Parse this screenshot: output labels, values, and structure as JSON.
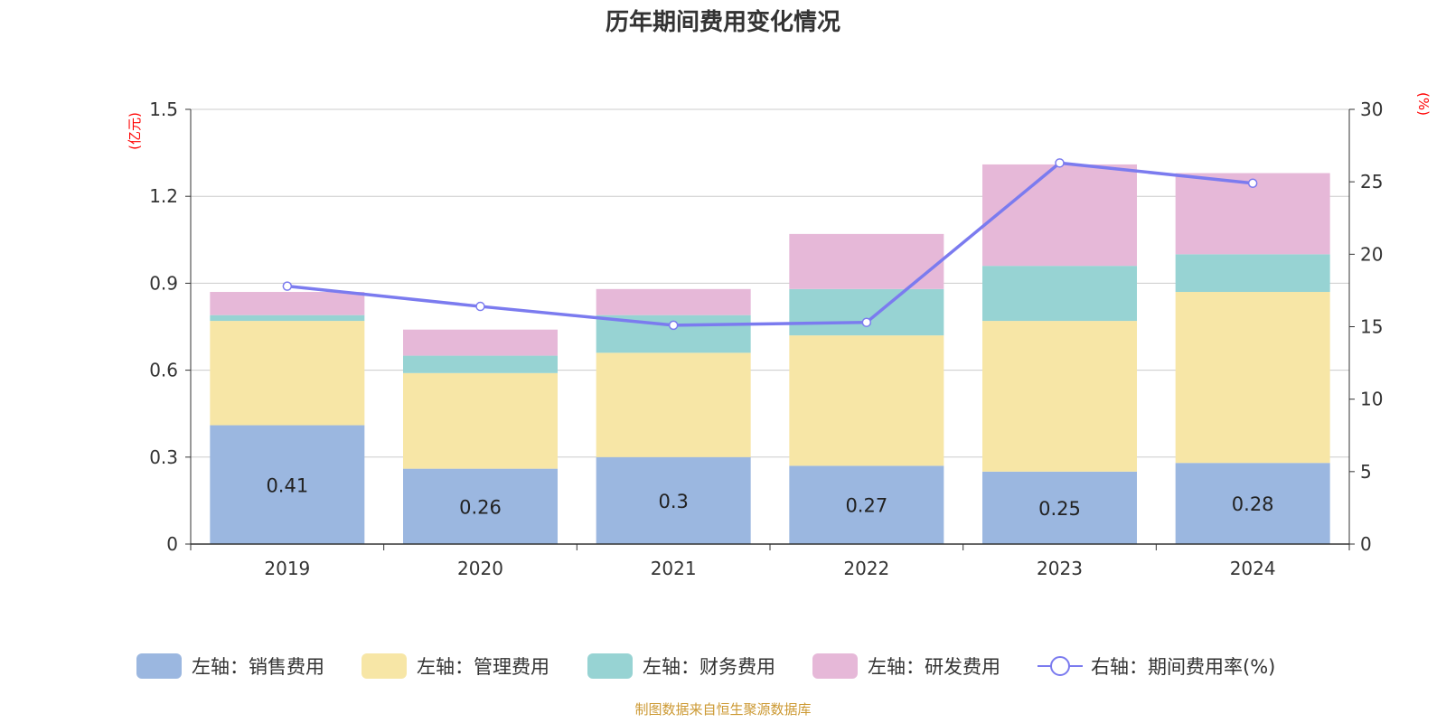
{
  "chart_data": {
    "type": "bar",
    "stacked": true,
    "title": "历年期间费用变化情况",
    "categories": [
      "2019",
      "2020",
      "2021",
      "2022",
      "2023",
      "2024"
    ],
    "left_axis": {
      "unit": "(亿元)",
      "ylim": [
        0,
        1.5
      ],
      "ticks": [
        "0",
        "0.3",
        "0.6",
        "0.9",
        "1.2",
        "1.5"
      ]
    },
    "right_axis": {
      "unit": "(%)",
      "ylim": [
        0,
        30
      ],
      "ticks": [
        "0",
        "5",
        "10",
        "15",
        "20",
        "25",
        "30"
      ]
    },
    "series": [
      {
        "name": "左轴：销售费用",
        "axis": "left",
        "color": "#9bb7e0",
        "values": [
          0.41,
          0.26,
          0.3,
          0.27,
          0.25,
          0.28
        ],
        "labels": [
          "0.41",
          "0.26",
          "0.3",
          "0.27",
          "0.25",
          "0.28"
        ]
      },
      {
        "name": "左轴：管理费用",
        "axis": "left",
        "color": "#f7e6a6",
        "values": [
          0.36,
          0.33,
          0.36,
          0.45,
          0.52,
          0.59
        ]
      },
      {
        "name": "左轴：财务费用",
        "axis": "left",
        "color": "#97d3d3",
        "values": [
          0.02,
          0.06,
          0.13,
          0.16,
          0.19,
          0.13
        ]
      },
      {
        "name": "左轴：研发费用",
        "axis": "left",
        "color": "#e6b8d8",
        "values": [
          0.08,
          0.09,
          0.09,
          0.19,
          0.35,
          0.28
        ]
      },
      {
        "name": "右轴：期间费用率(%)",
        "axis": "right",
        "type": "line",
        "color": "#7b7bef",
        "values": [
          17.8,
          16.4,
          15.1,
          15.3,
          26.3,
          24.9
        ]
      }
    ],
    "grid": true,
    "legend_position": "bottom"
  },
  "footer": "制图数据来自恒生聚源数据库"
}
